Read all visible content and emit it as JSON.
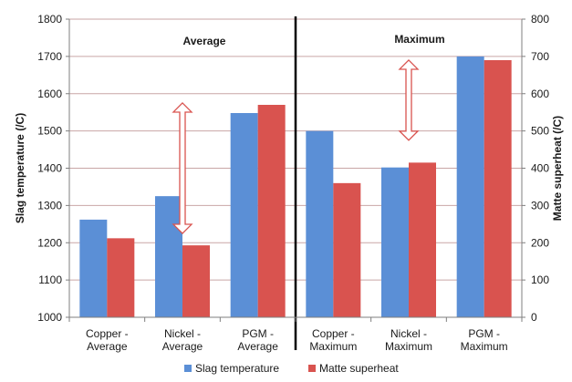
{
  "chart_data": {
    "type": "bar",
    "categories": [
      [
        "Copper -",
        "Average"
      ],
      [
        "Nickel -",
        "Average"
      ],
      [
        "PGM -",
        "Average"
      ],
      [
        "Copper -",
        "Maximum"
      ],
      [
        "Nickel -",
        "Maximum"
      ],
      [
        "PGM -",
        "Maximum"
      ]
    ],
    "panels": [
      "Average",
      "Maximum"
    ],
    "ylabel": "Slag temperature (/C)",
    "y2label": "Matte superheat (/C)",
    "ylim": [
      1000,
      1800
    ],
    "y2lim": [
      0,
      800
    ],
    "yticks": [
      "1000",
      "1100",
      "1200",
      "1300",
      "1400",
      "1500",
      "1600",
      "1700",
      "1800"
    ],
    "y2ticks": [
      "0",
      "100",
      "200",
      "300",
      "400",
      "500",
      "600",
      "700",
      "800"
    ],
    "grid": true,
    "legend_position": "bottom",
    "series": [
      {
        "name": "Slag temperature",
        "axis": "left",
        "color": "#5b8fd6",
        "values": [
          1262,
          1325,
          1548,
          1500,
          1402,
          1700
        ]
      },
      {
        "name": "Matte superheat",
        "axis": "right",
        "color": "#d9534f",
        "values": [
          212,
          193,
          570,
          360,
          415,
          690
        ]
      }
    ],
    "annotations": [
      {
        "type": "double-arrow",
        "category_index": 1,
        "from": 1225,
        "to": 1575,
        "color": "#d9534f"
      },
      {
        "type": "double-arrow",
        "category_index": 4,
        "from": 1475,
        "to": 1690,
        "color": "#d9534f"
      }
    ]
  }
}
